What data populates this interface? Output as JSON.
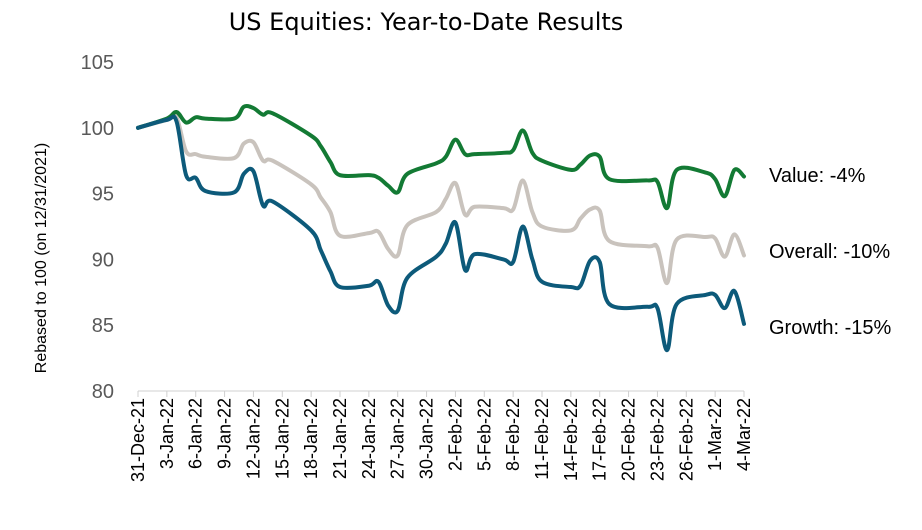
{
  "chart_data": {
    "type": "line",
    "title": "US Equities: Year-to-Date Results",
    "ylabel": "Rebased to 100 (on 12/31/2021)",
    "xlabel": "",
    "ylim": [
      80,
      105
    ],
    "yticks": [
      80,
      85,
      90,
      95,
      100,
      105
    ],
    "grid": false,
    "legend": "none",
    "x_tick_labels": [
      "31-Dec-21",
      "3-Jan-22",
      "6-Jan-22",
      "9-Jan-22",
      "12-Jan-22",
      "15-Jan-22",
      "18-Jan-22",
      "21-Jan-22",
      "24-Jan-22",
      "27-Jan-22",
      "30-Jan-22",
      "2-Feb-22",
      "5-Feb-22",
      "8-Feb-22",
      "11-Feb-22",
      "14-Feb-22",
      "17-Feb-22",
      "20-Feb-22",
      "23-Feb-22",
      "26-Feb-22",
      "1-Mar-22",
      "4-Mar-22"
    ],
    "x_dates": [
      "2021-12-31",
      "2022-01-03",
      "2022-01-04",
      "2022-01-05",
      "2022-01-06",
      "2022-01-07",
      "2022-01-10",
      "2022-01-11",
      "2022-01-12",
      "2022-01-13",
      "2022-01-14",
      "2022-01-18",
      "2022-01-19",
      "2022-01-20",
      "2022-01-21",
      "2022-01-24",
      "2022-01-25",
      "2022-01-26",
      "2022-01-27",
      "2022-01-28",
      "2022-01-31",
      "2022-02-01",
      "2022-02-02",
      "2022-02-03",
      "2022-02-04",
      "2022-02-07",
      "2022-02-08",
      "2022-02-09",
      "2022-02-10",
      "2022-02-11",
      "2022-02-14",
      "2022-02-15",
      "2022-02-16",
      "2022-02-17",
      "2022-02-18",
      "2022-02-22",
      "2022-02-23",
      "2022-02-24",
      "2022-02-25",
      "2022-02-28",
      "2022-03-01",
      "2022-03-02",
      "2022-03-03",
      "2022-03-04"
    ],
    "series": [
      {
        "color": "#137a34",
        "end_label": "Value: -4%",
        "values": [
          100.0,
          100.7,
          101.2,
          100.4,
          100.8,
          100.7,
          100.7,
          101.6,
          101.5,
          101.0,
          101.1,
          99.4,
          98.6,
          97.4,
          96.4,
          96.4,
          96.2,
          95.6,
          95.1,
          96.5,
          97.3,
          97.8,
          99.1,
          98.0,
          98.0,
          98.1,
          98.3,
          99.8,
          98.1,
          97.5,
          96.8,
          97.2,
          97.9,
          97.8,
          96.1,
          96.0,
          95.9,
          93.9,
          96.8,
          96.6,
          96.1,
          94.8,
          96.8,
          96.3
        ]
      },
      {
        "color": "#c9c3bd",
        "end_label": "Overall: -10%",
        "values": [
          100.0,
          100.6,
          100.8,
          98.2,
          98.0,
          97.8,
          97.7,
          98.8,
          98.9,
          97.5,
          97.5,
          95.7,
          94.7,
          93.6,
          91.8,
          92.0,
          92.1,
          90.8,
          90.3,
          92.6,
          93.6,
          94.6,
          95.8,
          93.4,
          94.0,
          93.9,
          93.8,
          96.0,
          93.6,
          92.5,
          92.2,
          93.1,
          93.8,
          93.7,
          91.4,
          91.0,
          90.9,
          88.2,
          91.5,
          91.7,
          91.6,
          90.2,
          91.9,
          90.3
        ]
      },
      {
        "color": "#0d5a7a",
        "end_label": "Growth: -15%",
        "values": [
          100.0,
          100.6,
          100.5,
          96.4,
          96.2,
          95.2,
          95.1,
          96.5,
          96.7,
          94.1,
          94.4,
          92.2,
          90.7,
          89.1,
          87.9,
          88.0,
          88.3,
          86.5,
          86.1,
          88.6,
          90.2,
          91.2,
          92.8,
          89.2,
          90.4,
          90.0,
          89.8,
          92.5,
          90.0,
          88.3,
          87.9,
          88.0,
          89.9,
          89.8,
          86.6,
          86.4,
          86.3,
          83.1,
          86.6,
          87.3,
          87.3,
          86.3,
          87.6,
          85.1
        ]
      }
    ]
  }
}
